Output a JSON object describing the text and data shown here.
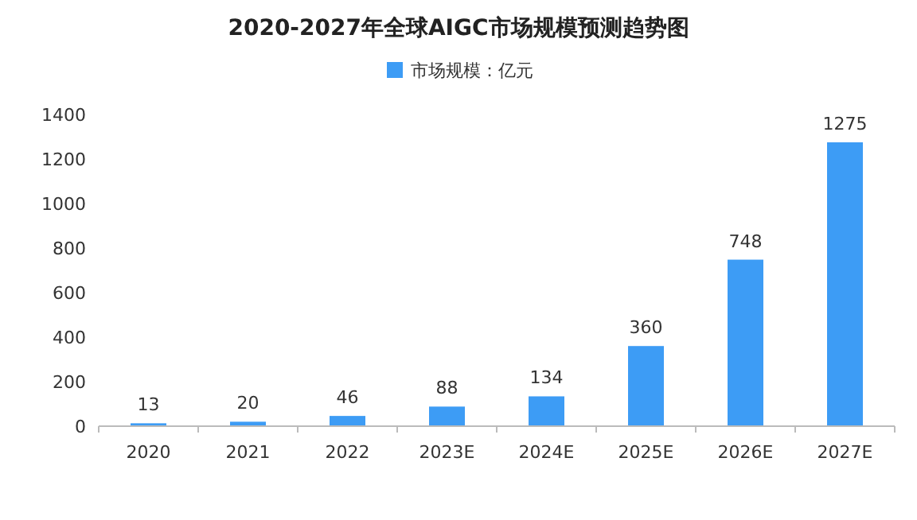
{
  "chart_data": {
    "type": "bar",
    "title": "2020-2027年全球AIGC市场规模预测趋势图",
    "categories": [
      "2020",
      "2021",
      "2022",
      "2023E",
      "2024E",
      "2025E",
      "2026E",
      "2027E"
    ],
    "series": [
      {
        "name": "市场规模：亿元",
        "color": "#3d9cf5",
        "values": [
          13,
          20,
          46,
          88,
          134,
          360,
          748,
          1275
        ]
      }
    ],
    "ylim": [
      0,
      1400
    ],
    "yticks": [
      0,
      200,
      400,
      600,
      800,
      1000,
      1200,
      1400
    ],
    "data_labels": true,
    "legend": "top",
    "grid": false
  }
}
